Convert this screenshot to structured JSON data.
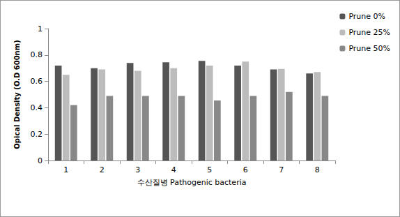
{
  "chart_data": {
    "type": "bar",
    "x_label": "수산질병 Pathogenic bacteria",
    "y_label": "Opical Density (O.D 600nm)",
    "categories": [
      "1",
      "2",
      "3",
      "4",
      "5",
      "6",
      "7",
      "8"
    ],
    "series": [
      {
        "name": "Prune 0%",
        "color": "#555555",
        "values": [
          0.72,
          0.7,
          0.74,
          0.745,
          0.755,
          0.72,
          0.69,
          0.66
        ]
      },
      {
        "name": "Prune 25%",
        "color": "#bcbcbc",
        "values": [
          0.65,
          0.69,
          0.68,
          0.7,
          0.72,
          0.75,
          0.695,
          0.67
        ]
      },
      {
        "name": "Prune 50%",
        "color": "#888888",
        "values": [
          0.42,
          0.49,
          0.49,
          0.49,
          0.455,
          0.49,
          0.52,
          0.49
        ]
      }
    ],
    "ylim": [
      0,
      1
    ],
    "yticks": [
      0,
      0.2,
      0.4,
      0.6,
      0.8,
      1
    ],
    "grid": false,
    "legend": "upper right"
  }
}
